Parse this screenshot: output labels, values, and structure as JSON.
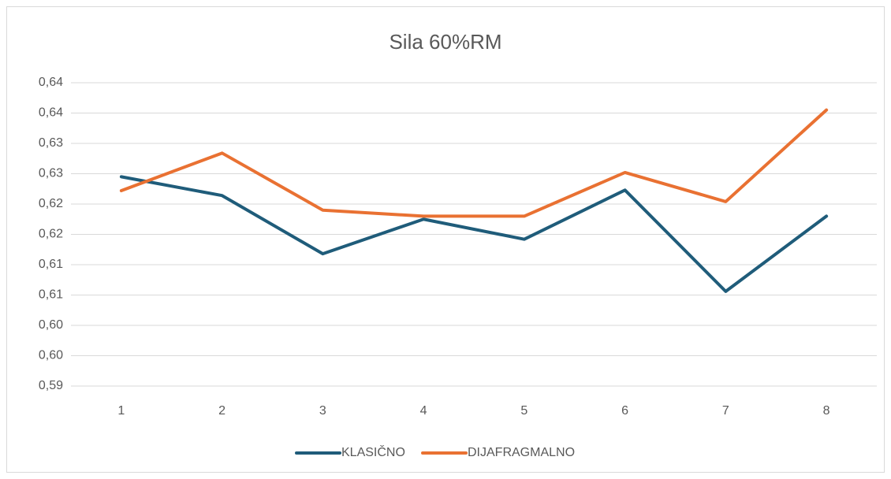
{
  "chart_data": {
    "type": "line",
    "title": "Sila 60%RM",
    "categories": [
      1,
      2,
      3,
      4,
      5,
      6,
      7,
      8
    ],
    "series": [
      {
        "name": "KLASIČNO",
        "color": "#1f5c7a",
        "values": [
          0.6295,
          0.6264,
          0.6168,
          0.6225,
          0.6192,
          0.6273,
          0.6106,
          0.623
        ]
      },
      {
        "name": "DIJAFRAGMALNO",
        "color": "#e97132",
        "values": [
          0.6272,
          0.6334,
          0.624,
          0.623,
          0.623,
          0.6302,
          0.6254,
          0.6405
        ]
      }
    ],
    "ylim": [
      0.595,
      0.645
    ],
    "yticks": [
      {
        "value": 0.595,
        "label": "0,59"
      },
      {
        "value": 0.6,
        "label": "0,60"
      },
      {
        "value": 0.605,
        "label": "0,60"
      },
      {
        "value": 0.61,
        "label": "0,61"
      },
      {
        "value": 0.615,
        "label": "0,61"
      },
      {
        "value": 0.62,
        "label": "0,62"
      },
      {
        "value": 0.625,
        "label": "0,62"
      },
      {
        "value": 0.63,
        "label": "0,63"
      },
      {
        "value": 0.635,
        "label": "0,63"
      },
      {
        "value": 0.64,
        "label": "0,64"
      },
      {
        "value": 0.645,
        "label": "0,64"
      }
    ],
    "grid": true,
    "legend": "bottom"
  }
}
